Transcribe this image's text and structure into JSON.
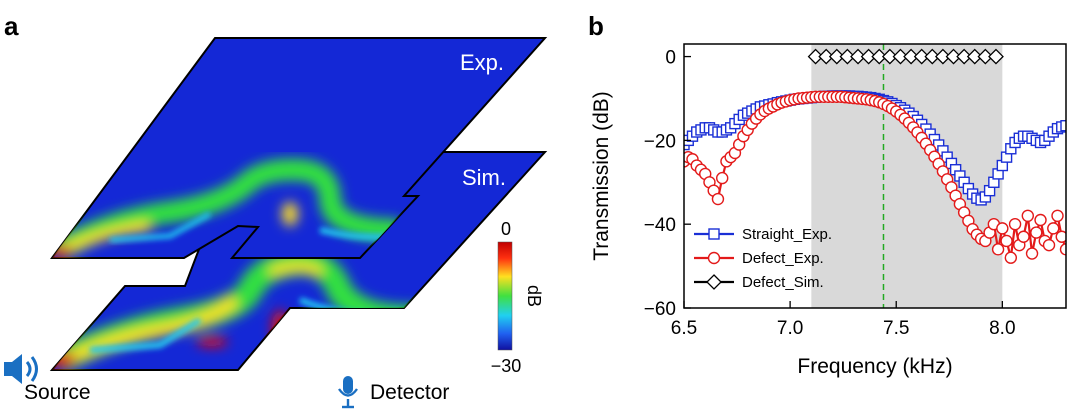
{
  "panel_a": {
    "letter": "a",
    "plane_labels": {
      "exp": "Exp.",
      "sim": "Sim."
    },
    "colorbar": {
      "max_label": "0",
      "min_label": "−30",
      "unit": "dB"
    },
    "source_label": "Source",
    "detector_label": "Detector",
    "icons": [
      "speaker-icon",
      "microphone-icon"
    ],
    "colors": {
      "background": "#1428d6",
      "hot": "#e01010",
      "warm": "#f0e020",
      "mid": "#30e040",
      "cool": "#20c8f0"
    }
  },
  "panel_b": {
    "letter": "b",
    "chart_data": {
      "type": "line",
      "xlabel": "Frequency (kHz)",
      "ylabel": "Transmission (dB)",
      "xlim": [
        6.5,
        8.3
      ],
      "ylim": [
        -60,
        3
      ],
      "xticks": [
        "6.5",
        "7.0",
        "7.5",
        "8.0"
      ],
      "yticks": [
        "0",
        "−20",
        "−40",
        "−60"
      ],
      "band": {
        "from": 7.1,
        "to": 8.0,
        "color": "#d9d9d9"
      },
      "marker_line": {
        "x": 7.44,
        "color": "#22aa22"
      },
      "legend_position": "bottom-left",
      "series": [
        {
          "name": "Straight_Exp.",
          "color": "#1a2fd6",
          "marker": "square",
          "x": [
            6.5,
            6.52,
            6.54,
            6.56,
            6.58,
            6.6,
            6.62,
            6.64,
            6.66,
            6.68,
            6.7,
            6.72,
            6.74,
            6.76,
            6.78,
            6.8,
            6.82,
            6.84,
            6.86,
            6.88,
            6.9,
            6.92,
            6.94,
            6.96,
            6.98,
            7.0,
            7.02,
            7.04,
            7.06,
            7.08,
            7.1,
            7.12,
            7.14,
            7.16,
            7.18,
            7.2,
            7.22,
            7.24,
            7.26,
            7.28,
            7.3,
            7.32,
            7.34,
            7.36,
            7.38,
            7.4,
            7.42,
            7.44,
            7.46,
            7.48,
            7.5,
            7.52,
            7.54,
            7.56,
            7.58,
            7.6,
            7.62,
            7.64,
            7.66,
            7.68,
            7.7,
            7.72,
            7.74,
            7.76,
            7.78,
            7.8,
            7.82,
            7.84,
            7.86,
            7.88,
            7.9,
            7.92,
            7.94,
            7.96,
            7.98,
            8.0,
            8.02,
            8.04,
            8.06,
            8.08,
            8.1,
            8.12,
            8.14,
            8.16,
            8.18,
            8.2,
            8.22,
            8.24,
            8.26,
            8.28,
            8.3
          ],
          "y": [
            -21,
            -20,
            -19,
            -18,
            -17.5,
            -17,
            -17,
            -17.5,
            -18,
            -18,
            -17.5,
            -17,
            -16,
            -15,
            -14,
            -13.5,
            -13,
            -12.5,
            -12,
            -11.8,
            -11.5,
            -11.3,
            -11,
            -10.8,
            -10.6,
            -10.4,
            -10.2,
            -10.1,
            -10,
            -9.9,
            -9.8,
            -9.7,
            -9.6,
            -9.5,
            -9.5,
            -9.4,
            -9.4,
            -9.4,
            -9.4,
            -9.4,
            -9.5,
            -9.5,
            -9.6,
            -9.7,
            -9.8,
            -10,
            -10.2,
            -10.5,
            -10.8,
            -11.2,
            -11.7,
            -12.2,
            -12.8,
            -13.5,
            -14.3,
            -15.2,
            -16.2,
            -17.3,
            -18.5,
            -19.8,
            -21.1,
            -22.5,
            -24,
            -25.5,
            -27,
            -28.5,
            -30,
            -31.5,
            -32.8,
            -33.8,
            -34.2,
            -33.5,
            -32,
            -30,
            -28,
            -26,
            -24,
            -22,
            -20.5,
            -19.5,
            -19,
            -19,
            -19.5,
            -20,
            -20.5,
            -20,
            -19,
            -18,
            -17.2,
            -16.8,
            -16.5
          ]
        },
        {
          "name": "Defect_Exp.",
          "color": "#e31a1a",
          "marker": "circle",
          "x": [
            6.5,
            6.52,
            6.54,
            6.56,
            6.58,
            6.6,
            6.62,
            6.64,
            6.66,
            6.68,
            6.7,
            6.72,
            6.74,
            6.76,
            6.78,
            6.8,
            6.82,
            6.84,
            6.86,
            6.88,
            6.9,
            6.92,
            6.94,
            6.96,
            6.98,
            7.0,
            7.02,
            7.04,
            7.06,
            7.08,
            7.1,
            7.12,
            7.14,
            7.16,
            7.18,
            7.2,
            7.22,
            7.24,
            7.26,
            7.28,
            7.3,
            7.32,
            7.34,
            7.36,
            7.38,
            7.4,
            7.42,
            7.44,
            7.46,
            7.48,
            7.5,
            7.52,
            7.54,
            7.56,
            7.58,
            7.6,
            7.62,
            7.64,
            7.66,
            7.68,
            7.7,
            7.72,
            7.74,
            7.76,
            7.78,
            7.8,
            7.82,
            7.84,
            7.86,
            7.88,
            7.9,
            7.92,
            7.94,
            7.96,
            7.98,
            8.0,
            8.02,
            8.04,
            8.06,
            8.08,
            8.1,
            8.12,
            8.14,
            8.16,
            8.18,
            8.2,
            8.22,
            8.24,
            8.26,
            8.28,
            8.3
          ],
          "y": [
            -25,
            -24,
            -24.5,
            -26,
            -27,
            -28,
            -30,
            -32,
            -34,
            -29,
            -25,
            -24,
            -23,
            -21,
            -19,
            -17.5,
            -16,
            -14.8,
            -13.8,
            -13,
            -12.4,
            -11.9,
            -11.4,
            -11,
            -10.7,
            -10.4,
            -10.2,
            -10,
            -9.9,
            -9.8,
            -9.7,
            -9.6,
            -9.6,
            -9.6,
            -9.6,
            -9.6,
            -9.6,
            -9.6,
            -9.7,
            -9.8,
            -9.9,
            -10,
            -10.1,
            -10.2,
            -10.4,
            -10.6,
            -10.9,
            -11.3,
            -11.8,
            -12.4,
            -13.1,
            -13.9,
            -14.8,
            -15.8,
            -16.9,
            -18.1,
            -19.4,
            -20.8,
            -22.3,
            -23.9,
            -25.6,
            -27.4,
            -29.3,
            -31.2,
            -33.2,
            -35.2,
            -37.2,
            -39.2,
            -41.2,
            -42.5,
            -43.5,
            -44,
            -42,
            -40,
            -46,
            -41,
            -44,
            -48,
            -40,
            -45,
            -43,
            -38,
            -47,
            -42,
            -39,
            -44,
            -45,
            -41,
            -38,
            -43,
            -46
          ]
        },
        {
          "name": "Defect_Sim.",
          "color": "#000000",
          "marker": "diamond",
          "x": [
            7.12,
            7.17,
            7.22,
            7.27,
            7.32,
            7.37,
            7.42,
            7.47,
            7.52,
            7.57,
            7.62,
            7.67,
            7.72,
            7.77,
            7.82,
            7.87,
            7.92,
            7.97
          ],
          "y": [
            0,
            0,
            0,
            0,
            0,
            0,
            0,
            0,
            0,
            0,
            0,
            0,
            0,
            0,
            0,
            0,
            0,
            0
          ]
        }
      ]
    }
  }
}
